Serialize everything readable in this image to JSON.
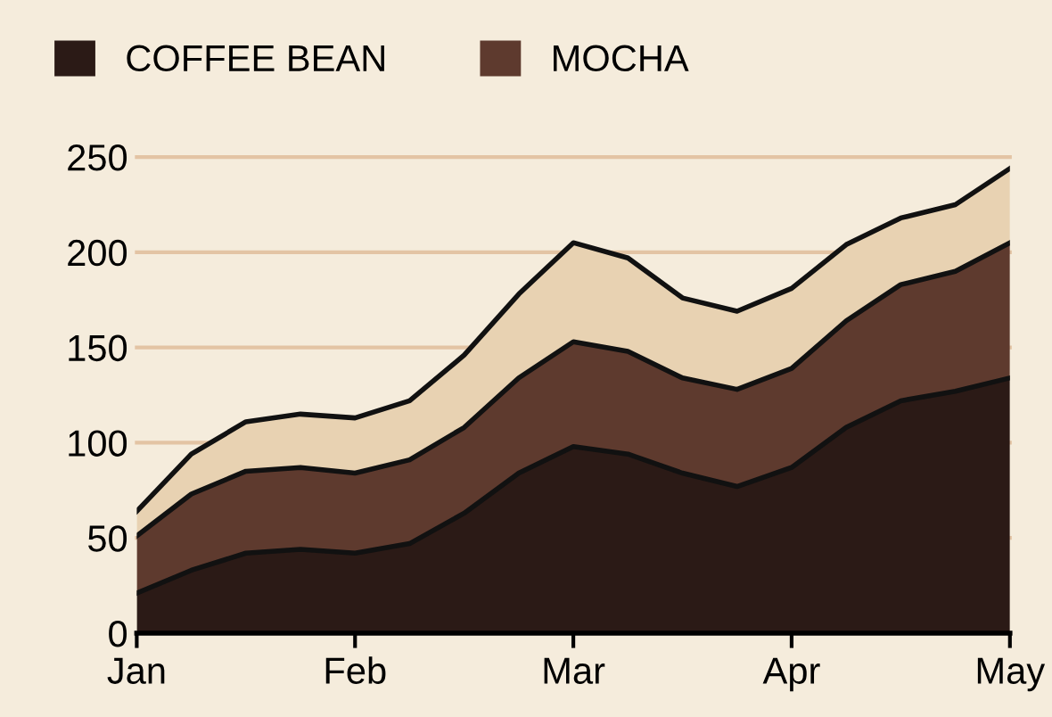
{
  "chart_data": {
    "type": "area",
    "stacked": true,
    "categories": [
      "Jan",
      null,
      null,
      null,
      "Feb",
      null,
      null,
      null,
      "Mar",
      null,
      null,
      null,
      "Apr",
      null,
      null,
      null,
      "May"
    ],
    "series": [
      {
        "name": "COFFEE BEAN",
        "color": "#2b1a16",
        "values": [
          21,
          33,
          42,
          44,
          42,
          47,
          63,
          84,
          98,
          94,
          84,
          77,
          87,
          108,
          122,
          127,
          134
        ]
      },
      {
        "name": "MOCHA",
        "color": "#5e3a2e",
        "values": [
          30,
          40,
          43,
          43,
          42,
          44,
          45,
          50,
          55,
          54,
          50,
          51,
          52,
          56,
          61,
          63,
          71
        ]
      },
      {
        "color": "#e8d2b2",
        "values": [
          13,
          21,
          26,
          28,
          29,
          31,
          38,
          44,
          52,
          49,
          42,
          41,
          42,
          40,
          35,
          35,
          39
        ]
      }
    ],
    "ylim": [
      0,
      250
    ],
    "yticks": [
      0,
      50,
      100,
      150,
      200,
      250
    ],
    "grid": "y",
    "legend": "top left"
  }
}
